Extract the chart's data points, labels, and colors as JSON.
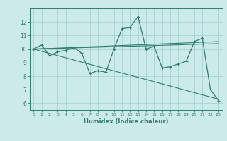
{
  "xlabel": "Humidex (Indice chaleur)",
  "bg_color": "#cceaea",
  "grid_color": "#a0cccc",
  "line_color": "#2e7d6e",
  "xlim": [
    -0.5,
    23.5
  ],
  "ylim": [
    5.5,
    13.0
  ],
  "yticks": [
    6,
    7,
    8,
    9,
    10,
    11,
    12
  ],
  "xticks": [
    0,
    1,
    2,
    3,
    4,
    5,
    6,
    7,
    8,
    9,
    10,
    11,
    12,
    13,
    14,
    15,
    16,
    17,
    18,
    19,
    20,
    21,
    22,
    23
  ],
  "series1_x": [
    0,
    1,
    2,
    3,
    4,
    5,
    6,
    7,
    8,
    9,
    10,
    11,
    12,
    13,
    14,
    15,
    16,
    17,
    18,
    19,
    20,
    21,
    22,
    23
  ],
  "series1_y": [
    10.0,
    10.3,
    9.5,
    9.8,
    9.9,
    10.1,
    9.7,
    8.2,
    8.4,
    8.3,
    10.0,
    11.5,
    11.6,
    12.4,
    10.0,
    10.2,
    8.6,
    8.7,
    8.9,
    9.1,
    10.55,
    10.8,
    7.0,
    6.2
  ],
  "series2_x": [
    0,
    23
  ],
  "series2_y": [
    10.0,
    6.3
  ],
  "series3_x": [
    0,
    23
  ],
  "series3_y": [
    10.0,
    10.4
  ],
  "series4_x": [
    0,
    23
  ],
  "series4_y": [
    10.0,
    10.55
  ]
}
